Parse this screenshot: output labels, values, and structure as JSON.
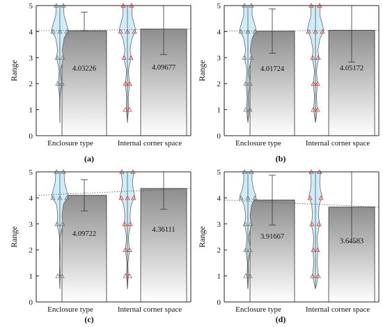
{
  "colors": {
    "violin_fill": "#cdeef8",
    "violin_stroke": "#555555",
    "bar_top": "#8e8e8e",
    "bar_bottom": "#ffffff",
    "marker_enclosure": "#777777",
    "marker_corner": "#e23b3b",
    "axis": "#222222",
    "trend": "#555555"
  },
  "chart_data": [
    {
      "type": "bar",
      "panel_label": "(a)",
      "ylabel": "Range",
      "ylim": [
        0,
        5
      ],
      "yticks": [
        "0",
        "1",
        "2",
        "3",
        "4",
        "5"
      ],
      "categories": [
        "Enclosure type",
        "Internal corner space"
      ],
      "values": [
        4.03226,
        4.09677
      ],
      "value_labels": [
        "4.03226",
        "4.09677"
      ],
      "error_high": [
        4.75,
        5.0
      ],
      "error_low": [
        4.03226,
        3.12
      ],
      "violin": [
        {
          "min": 0.5,
          "max": 5,
          "profile": [
            [
              5,
              0.45
            ],
            [
              4.6,
              0.5
            ],
            [
              4.3,
              0.8
            ],
            [
              4.05,
              1
            ],
            [
              3.75,
              0.5
            ],
            [
              3.3,
              0.28
            ],
            [
              3,
              0.4
            ],
            [
              2.5,
              0.08
            ],
            [
              2,
              0.22
            ],
            [
              1.5,
              0.04
            ],
            [
              1,
              0.02
            ],
            [
              0.5,
              0
            ]
          ],
          "marker_levels": [
            5,
            4,
            3,
            2
          ],
          "marker_style": "enclosure"
        },
        {
          "min": 0.5,
          "max": 5,
          "profile": [
            [
              5,
              0.55
            ],
            [
              4.6,
              0.55
            ],
            [
              4.3,
              0.8
            ],
            [
              4.05,
              1
            ],
            [
              3.75,
              0.55
            ],
            [
              3.3,
              0.3
            ],
            [
              3,
              0.45
            ],
            [
              2.5,
              0.1
            ],
            [
              2,
              0.25
            ],
            [
              1.5,
              0.1
            ],
            [
              1,
              0.12
            ],
            [
              0.5,
              0
            ]
          ],
          "marker_levels": [
            5,
            4,
            3,
            2,
            1
          ],
          "marker_style": "corner"
        }
      ]
    },
    {
      "type": "bar",
      "panel_label": "(b)",
      "ylabel": "Range",
      "ylim": [
        0,
        5
      ],
      "yticks": [
        "0",
        "1",
        "2",
        "3",
        "4",
        "5"
      ],
      "categories": [
        "Enclosure type",
        "Internal corner space"
      ],
      "values": [
        4.01724,
        4.05172
      ],
      "value_labels": [
        "4.01724",
        "4.05172"
      ],
      "error_high": [
        4.87,
        5.0
      ],
      "error_low": [
        3.17,
        2.83
      ],
      "violin": [
        {
          "min": 0.5,
          "max": 5,
          "profile": [
            [
              5,
              0.5
            ],
            [
              4.6,
              0.5
            ],
            [
              4.3,
              0.8
            ],
            [
              4.05,
              1
            ],
            [
              3.75,
              0.5
            ],
            [
              3.3,
              0.28
            ],
            [
              3,
              0.42
            ],
            [
              2.5,
              0.1
            ],
            [
              2,
              0.25
            ],
            [
              1.5,
              0.08
            ],
            [
              1,
              0.18
            ],
            [
              0.5,
              0
            ]
          ],
          "marker_levels": [
            5,
            4,
            3,
            2,
            1
          ],
          "marker_style": "enclosure"
        },
        {
          "min": 0.5,
          "max": 5,
          "profile": [
            [
              5,
              0.55
            ],
            [
              4.6,
              0.55
            ],
            [
              4.3,
              0.8
            ],
            [
              4.05,
              1
            ],
            [
              3.75,
              0.55
            ],
            [
              3.3,
              0.3
            ],
            [
              3,
              0.4
            ],
            [
              2.5,
              0.12
            ],
            [
              2,
              0.25
            ],
            [
              1.5,
              0.12
            ],
            [
              1,
              0.22
            ],
            [
              0.5,
              0
            ]
          ],
          "marker_levels": [
            5,
            4,
            3,
            2,
            1
          ],
          "marker_style": "corner"
        }
      ]
    },
    {
      "type": "bar",
      "panel_label": "(c)",
      "ylabel": "Range",
      "ylim": [
        0,
        5
      ],
      "yticks": [
        "0",
        "1",
        "2",
        "3",
        "4",
        "5"
      ],
      "categories": [
        "Enclosure type",
        "Internal corner space"
      ],
      "values": [
        4.09722,
        4.36111
      ],
      "value_labels": [
        "4.09722",
        "4.36111"
      ],
      "error_high": [
        4.7,
        5.0
      ],
      "error_low": [
        3.5,
        3.56
      ],
      "violin": [
        {
          "min": 0.5,
          "max": 5,
          "profile": [
            [
              5,
              0.5
            ],
            [
              4.6,
              0.55
            ],
            [
              4.3,
              0.8
            ],
            [
              4.05,
              1
            ],
            [
              3.75,
              0.4
            ],
            [
              3.3,
              0.25
            ],
            [
              3,
              0.35
            ],
            [
              2.5,
              0.04
            ],
            [
              2,
              0.05
            ],
            [
              1.5,
              0.03
            ],
            [
              1,
              0.05
            ],
            [
              0.5,
              0
            ]
          ],
          "marker_levels": [
            5,
            4,
            3,
            1
          ],
          "marker_style": "enclosure"
        },
        {
          "min": 0.5,
          "max": 5,
          "profile": [
            [
              5,
              0.75
            ],
            [
              4.6,
              0.6
            ],
            [
              4.3,
              0.7
            ],
            [
              4.05,
              0.9
            ],
            [
              3.75,
              0.45
            ],
            [
              3.3,
              0.3
            ],
            [
              3,
              0.38
            ],
            [
              2.5,
              0.1
            ],
            [
              2,
              0.25
            ],
            [
              1.5,
              0.06
            ],
            [
              1,
              0.1
            ],
            [
              0.5,
              0
            ]
          ],
          "marker_levels": [
            5,
            4,
            3,
            2,
            1
          ],
          "marker_style": "corner"
        }
      ]
    },
    {
      "type": "bar",
      "panel_label": "(d)",
      "ylabel": "Range",
      "ylim": [
        0,
        5
      ],
      "yticks": [
        "0",
        "1",
        "2",
        "3",
        "4",
        "5"
      ],
      "categories": [
        "Enclosure type",
        "Internal corner space"
      ],
      "values": [
        3.91667,
        3.64583
      ],
      "value_labels": [
        "3.91667",
        "3.64583"
      ],
      "error_high": [
        4.87,
        5.0
      ],
      "error_low": [
        2.96,
        2.3
      ],
      "violin": [
        {
          "min": 0.5,
          "max": 5,
          "profile": [
            [
              5,
              0.5
            ],
            [
              4.6,
              0.5
            ],
            [
              4.3,
              0.7
            ],
            [
              4.05,
              1
            ],
            [
              3.75,
              0.45
            ],
            [
              3.3,
              0.25
            ],
            [
              3,
              0.4
            ],
            [
              2.5,
              0.1
            ],
            [
              2,
              0.28
            ],
            [
              1.5,
              0.05
            ],
            [
              1,
              0.1
            ],
            [
              0.5,
              0
            ]
          ],
          "marker_levels": [
            5,
            4,
            3,
            2,
            1
          ],
          "marker_style": "enclosure"
        },
        {
          "min": 0.5,
          "max": 5,
          "profile": [
            [
              5,
              0.6
            ],
            [
              4.6,
              0.5
            ],
            [
              4.3,
              0.6
            ],
            [
              4.05,
              0.8
            ],
            [
              3.75,
              0.45
            ],
            [
              3.3,
              0.35
            ],
            [
              3,
              0.5
            ],
            [
              2.5,
              0.2
            ],
            [
              2,
              0.3
            ],
            [
              1.5,
              0.2
            ],
            [
              1,
              0.35
            ],
            [
              0.5,
              0
            ]
          ],
          "marker_levels": [
            5,
            4,
            3,
            2,
            1
          ],
          "marker_style": "corner"
        }
      ]
    }
  ]
}
